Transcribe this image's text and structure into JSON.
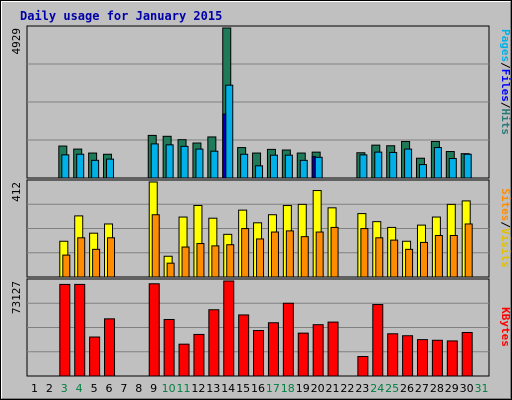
{
  "title": "Daily usage for January 2015",
  "colors": {
    "background": "#c0c0c0",
    "plot": "#c0c0c0",
    "pages": "#1f7a5a",
    "files": "#00b0e8",
    "hits": "#2a7a7a",
    "visits": "#ffff00",
    "sites": "#ff8c00",
    "kbytes": "#ff0000",
    "weekday_label": "#000000",
    "weekend_label": "#008040"
  },
  "chart_data": [
    {
      "type": "bar",
      "title": "Daily usage for January 2015",
      "categories": [
        "1",
        "2",
        "3",
        "4",
        "5",
        "6",
        "7",
        "8",
        "9",
        "10",
        "11",
        "12",
        "13",
        "14",
        "15",
        "16",
        "17",
        "18",
        "19",
        "20",
        "21",
        "22",
        "23",
        "24",
        "25",
        "26",
        "27",
        "28",
        "29",
        "30",
        "31"
      ],
      "weekend_days": [
        "3",
        "4",
        "10",
        "11",
        "17",
        "18",
        "24",
        "25",
        "31"
      ],
      "ymax_label": "4929",
      "ylim": [
        0,
        4929
      ],
      "legend": [
        "Pages",
        "Files",
        "Hits"
      ],
      "series": [
        {
          "name": "Pages",
          "values": [
            0,
            0,
            1050,
            950,
            820,
            780,
            0,
            0,
            1400,
            1370,
            1260,
            1150,
            1350,
            4929,
            1000,
            820,
            940,
            920,
            820,
            850,
            0,
            0,
            830,
            1080,
            1060,
            1200,
            650,
            1200,
            870,
            800,
            0
          ]
        },
        {
          "name": "Files",
          "values": [
            0,
            0,
            760,
            780,
            580,
            620,
            0,
            0,
            1120,
            1090,
            1040,
            950,
            880,
            3050,
            780,
            400,
            750,
            750,
            580,
            680,
            0,
            0,
            760,
            850,
            840,
            950,
            440,
            1000,
            640,
            780,
            0
          ]
        },
        {
          "name": "Hits",
          "values": [
            0,
            0,
            0,
            0,
            0,
            0,
            0,
            0,
            0,
            0,
            0,
            0,
            0,
            2100,
            0,
            0,
            0,
            0,
            0,
            710,
            0,
            0,
            0,
            0,
            0,
            0,
            0,
            0,
            0,
            0,
            0
          ]
        }
      ]
    },
    {
      "type": "bar",
      "categories": [
        "1",
        "2",
        "3",
        "4",
        "5",
        "6",
        "7",
        "8",
        "9",
        "10",
        "11",
        "12",
        "13",
        "14",
        "15",
        "16",
        "17",
        "18",
        "19",
        "20",
        "21",
        "22",
        "23",
        "24",
        "25",
        "26",
        "27",
        "28",
        "29",
        "30",
        "31"
      ],
      "ymax_label": "412",
      "ylim": [
        0,
        412
      ],
      "legend": [
        "Visits",
        "Sites"
      ],
      "series": [
        {
          "name": "Visits",
          "values": [
            0,
            0,
            155,
            265,
            190,
            230,
            0,
            0,
            412,
            90,
            260,
            310,
            255,
            185,
            290,
            235,
            270,
            310,
            315,
            375,
            300,
            0,
            275,
            240,
            215,
            155,
            225,
            260,
            315,
            330,
            0
          ]
        },
        {
          "name": "Sites",
          "values": [
            0,
            0,
            95,
            170,
            120,
            170,
            0,
            0,
            270,
            60,
            130,
            145,
            135,
            140,
            210,
            165,
            195,
            200,
            175,
            195,
            215,
            0,
            210,
            170,
            160,
            120,
            150,
            180,
            180,
            230,
            0
          ]
        }
      ]
    },
    {
      "type": "bar",
      "categories": [
        "1",
        "2",
        "3",
        "4",
        "5",
        "6",
        "7",
        "8",
        "9",
        "10",
        "11",
        "12",
        "13",
        "14",
        "15",
        "16",
        "17",
        "18",
        "19",
        "20",
        "21",
        "22",
        "23",
        "24",
        "25",
        "26",
        "27",
        "28",
        "29",
        "30",
        "31"
      ],
      "ymax_label": "73127",
      "ylim": [
        0,
        73127
      ],
      "legend": [
        "KBytes"
      ],
      "series": [
        {
          "name": "KBytes",
          "values": [
            0,
            0,
            70500,
            70500,
            30000,
            44000,
            0,
            0,
            71000,
            43500,
            24500,
            32000,
            51000,
            73127,
            47000,
            35000,
            41000,
            56000,
            33000,
            39500,
            41500,
            0,
            15000,
            55000,
            32500,
            31000,
            28000,
            27500,
            27000,
            33500,
            0
          ]
        }
      ]
    }
  ]
}
